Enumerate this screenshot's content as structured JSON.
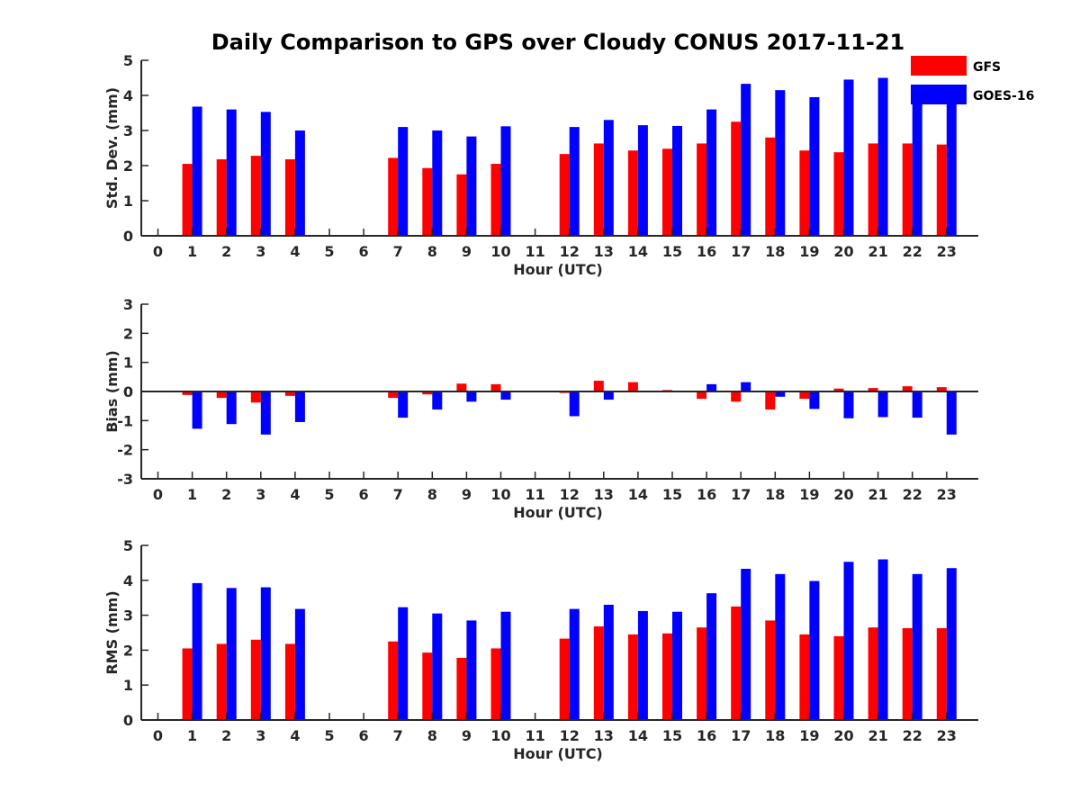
{
  "title": "Daily Comparison to GPS over Cloudy CONUS 2017-11-21",
  "colors": {
    "GFS": "#ff0000",
    "GOES-16": "#0000ff",
    "axis": "#262626"
  },
  "legend": [
    {
      "name": "GFS",
      "color": "#ff0000"
    },
    {
      "name": "GOES-16",
      "color": "#0000ff"
    }
  ],
  "chart_data": [
    {
      "type": "bar",
      "id": "std",
      "xlabel": "Hour (UTC)",
      "ylabel": "Std. Dev. (mm)",
      "ylim": [
        0,
        5
      ],
      "yticks": [
        0,
        1,
        2,
        3,
        4,
        5
      ],
      "categories": [
        "0",
        "1",
        "2",
        "3",
        "4",
        "5",
        "6",
        "7",
        "8",
        "9",
        "10",
        "11",
        "12",
        "13",
        "14",
        "15",
        "16",
        "17",
        "18",
        "19",
        "20",
        "21",
        "22",
        "23"
      ],
      "legend_position": "top-right",
      "series": [
        {
          "name": "GFS",
          "values": [
            null,
            2.05,
            2.18,
            2.28,
            2.18,
            null,
            null,
            2.22,
            1.93,
            1.75,
            2.05,
            null,
            2.33,
            2.63,
            2.43,
            2.48,
            2.63,
            3.25,
            2.8,
            2.43,
            2.38,
            2.63,
            2.63,
            2.6
          ]
        },
        {
          "name": "GOES-16",
          "values": [
            null,
            3.68,
            3.6,
            3.53,
            3.0,
            null,
            null,
            3.1,
            3.0,
            2.83,
            3.12,
            null,
            3.1,
            3.3,
            3.15,
            3.13,
            3.6,
            4.33,
            4.15,
            3.95,
            4.45,
            4.5,
            4.05,
            3.9
          ]
        }
      ]
    },
    {
      "type": "bar",
      "id": "bias",
      "xlabel": "Hour (UTC)",
      "ylabel": "Bias (mm)",
      "ylim": [
        -3,
        3
      ],
      "yticks": [
        -3,
        -2,
        -1,
        0,
        1,
        2,
        3
      ],
      "categories": [
        "0",
        "1",
        "2",
        "3",
        "4",
        "5",
        "6",
        "7",
        "8",
        "9",
        "10",
        "11",
        "12",
        "13",
        "14",
        "15",
        "16",
        "17",
        "18",
        "19",
        "20",
        "21",
        "22",
        "23"
      ],
      "series": [
        {
          "name": "GFS",
          "values": [
            null,
            -0.12,
            -0.22,
            -0.38,
            -0.15,
            null,
            null,
            -0.22,
            -0.1,
            0.27,
            0.25,
            null,
            -0.05,
            0.37,
            0.32,
            0.05,
            -0.25,
            -0.35,
            -0.62,
            -0.25,
            0.1,
            0.12,
            0.18,
            0.15
          ]
        },
        {
          "name": "GOES-16",
          "values": [
            null,
            -1.28,
            -1.12,
            -1.48,
            -1.05,
            null,
            null,
            -0.9,
            -0.62,
            -0.35,
            -0.28,
            null,
            -0.85,
            -0.28,
            0.0,
            0.0,
            0.25,
            0.32,
            -0.18,
            -0.6,
            -0.92,
            -0.88,
            -0.9,
            -1.48
          ]
        }
      ]
    },
    {
      "type": "bar",
      "id": "rms",
      "xlabel": "Hour (UTC)",
      "ylabel": "RMS (mm)",
      "ylim": [
        0,
        5
      ],
      "yticks": [
        0,
        1,
        2,
        3,
        4,
        5
      ],
      "categories": [
        "0",
        "1",
        "2",
        "3",
        "4",
        "5",
        "6",
        "7",
        "8",
        "9",
        "10",
        "11",
        "12",
        "13",
        "14",
        "15",
        "16",
        "17",
        "18",
        "19",
        "20",
        "21",
        "22",
        "23"
      ],
      "series": [
        {
          "name": "GFS",
          "values": [
            null,
            2.05,
            2.18,
            2.3,
            2.18,
            null,
            null,
            2.25,
            1.93,
            1.78,
            2.05,
            null,
            2.33,
            2.68,
            2.45,
            2.48,
            2.65,
            3.25,
            2.85,
            2.45,
            2.4,
            2.65,
            2.63,
            2.63
          ]
        },
        {
          "name": "GOES-16",
          "values": [
            null,
            3.92,
            3.78,
            3.8,
            3.18,
            null,
            null,
            3.23,
            3.05,
            2.85,
            3.1,
            null,
            3.18,
            3.3,
            3.12,
            3.1,
            3.63,
            4.33,
            4.18,
            3.98,
            4.53,
            4.6,
            4.18,
            4.35
          ]
        }
      ]
    }
  ]
}
